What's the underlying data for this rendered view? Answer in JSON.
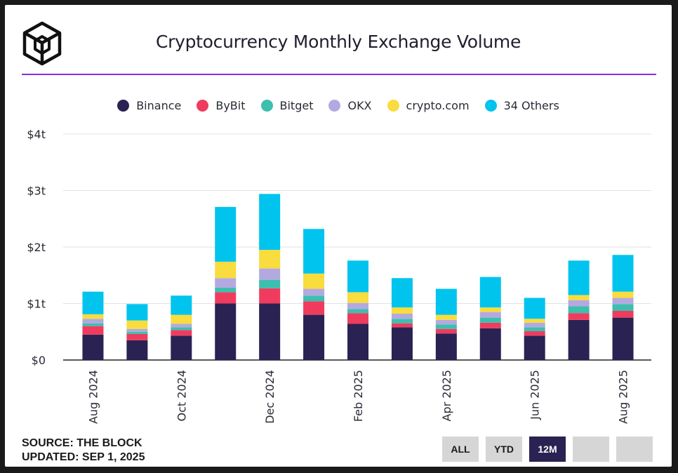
{
  "title": "Cryptocurrency Monthly Exchange Volume",
  "source_line": "SOURCE: THE BLOCK",
  "updated_line": "UPDATED: SEP 1, 2025",
  "range_buttons": [
    {
      "label": "ALL",
      "active": false
    },
    {
      "label": "YTD",
      "active": false
    },
    {
      "label": "12M",
      "active": true
    },
    {
      "label": "",
      "active": false
    },
    {
      "label": "",
      "active": false
    }
  ],
  "chart_data": {
    "type": "bar",
    "stacked": true,
    "categories": [
      "Aug 2024",
      "Sep 2024",
      "Oct 2024",
      "Nov 2024",
      "Dec 2024",
      "Jan 2025",
      "Feb 2025",
      "Mar 2025",
      "Apr 2025",
      "May 2025",
      "Jun 2025",
      "Jul 2025",
      "Aug 2025"
    ],
    "x_tick_labels": [
      "Aug 2024",
      "",
      "Oct 2024",
      "",
      "Dec 2024",
      "",
      "Feb 2025",
      "",
      "Apr 2025",
      "",
      "Jun 2025",
      "",
      "Aug 2025"
    ],
    "y_ticks": [
      0,
      1,
      2,
      3,
      4
    ],
    "y_tick_labels": [
      "$0",
      "$1t",
      "$2t",
      "$3t",
      "$4t"
    ],
    "ylim": [
      0,
      4
    ],
    "grid": true,
    "legend_position": "top-center",
    "series": [
      {
        "name": "Binance",
        "color": "#2a2253",
        "values": [
          0.45,
          0.35,
          0.43,
          1.0,
          1.0,
          0.8,
          0.64,
          0.58,
          0.47,
          0.56,
          0.43,
          0.71,
          0.75
        ]
      },
      {
        "name": "ByBit",
        "color": "#ef3c5e",
        "values": [
          0.15,
          0.11,
          0.1,
          0.2,
          0.27,
          0.24,
          0.19,
          0.07,
          0.08,
          0.1,
          0.08,
          0.12,
          0.12
        ]
      },
      {
        "name": "Bitget",
        "color": "#3cbfae",
        "values": [
          0.05,
          0.04,
          0.05,
          0.08,
          0.15,
          0.1,
          0.07,
          0.08,
          0.08,
          0.09,
          0.07,
          0.12,
          0.12
        ]
      },
      {
        "name": "OKX",
        "color": "#b3a9e0",
        "values": [
          0.08,
          0.05,
          0.06,
          0.17,
          0.2,
          0.12,
          0.11,
          0.09,
          0.08,
          0.1,
          0.08,
          0.11,
          0.11
        ]
      },
      {
        "name": "crypto.com",
        "color": "#f9dc3d",
        "values": [
          0.08,
          0.15,
          0.16,
          0.29,
          0.33,
          0.27,
          0.19,
          0.11,
          0.09,
          0.08,
          0.07,
          0.09,
          0.11
        ]
      },
      {
        "name": "34 Others",
        "color": "#00c4ee",
        "values": [
          0.4,
          0.29,
          0.34,
          0.97,
          0.99,
          0.79,
          0.56,
          0.52,
          0.46,
          0.54,
          0.37,
          0.61,
          0.65
        ]
      }
    ]
  }
}
